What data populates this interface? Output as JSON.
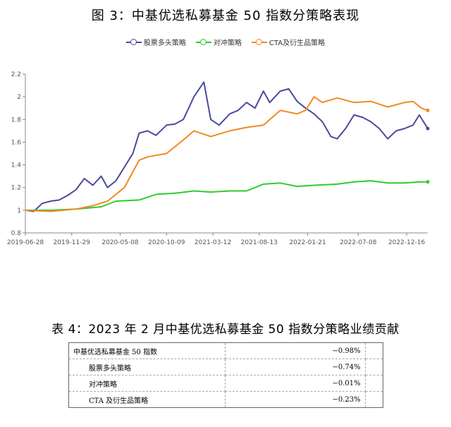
{
  "figure": {
    "title": "图 3：中基优选私募基金 50 指数分策略表现"
  },
  "table": {
    "title": "表 4：2023 年 2 月中基优选私募基金 50 指数分策略业绩贡献",
    "rows": [
      {
        "label": "中基优选私募基金 50 指数",
        "value": "−0.98%"
      },
      {
        "label": "股票多头策略",
        "value": "−0.74%"
      },
      {
        "label": "对冲策略",
        "value": "−0.01%"
      },
      {
        "label": "CTA 及衍生品策略",
        "value": "−0.23%"
      }
    ]
  },
  "chart_data": {
    "type": "line",
    "title": "",
    "xlabel": "",
    "ylabel": "",
    "ylim": [
      0.8,
      2.2
    ],
    "yticks": [
      "0.8",
      "1",
      "1.2",
      "1.4",
      "1.6",
      "1.8",
      "2",
      "2.2"
    ],
    "xticks": [
      "2019-06-28",
      "2019-11-29",
      "2020-05-08",
      "2020-10-09",
      "2021-03-12",
      "2021-08-13",
      "2022-01-21",
      "2022-07-08",
      "2022-12-16"
    ],
    "xrange": [
      "2019-06-28",
      "2023-02-24"
    ],
    "grid": false,
    "legend_position": "top",
    "colors": {
      "long_only": "#4a4a9c",
      "hedge": "#2ecc2e",
      "cta": "#f08a24"
    },
    "series": [
      {
        "name": "股票多头策略",
        "key": "long_only",
        "points": [
          [
            "2019-06-28",
            1.0
          ],
          [
            "2019-07-26",
            0.99
          ],
          [
            "2019-08-23",
            1.06
          ],
          [
            "2019-09-20",
            1.08
          ],
          [
            "2019-10-18",
            1.09
          ],
          [
            "2019-11-15",
            1.13
          ],
          [
            "2019-12-13",
            1.18
          ],
          [
            "2020-01-10",
            1.28
          ],
          [
            "2020-02-07",
            1.22
          ],
          [
            "2020-03-06",
            1.3
          ],
          [
            "2020-03-27",
            1.2
          ],
          [
            "2020-04-24",
            1.26
          ],
          [
            "2020-05-22",
            1.38
          ],
          [
            "2020-06-19",
            1.5
          ],
          [
            "2020-07-10",
            1.68
          ],
          [
            "2020-08-07",
            1.7
          ],
          [
            "2020-09-04",
            1.66
          ],
          [
            "2020-10-09",
            1.75
          ],
          [
            "2020-11-06",
            1.76
          ],
          [
            "2020-12-04",
            1.8
          ],
          [
            "2021-01-08",
            2.0
          ],
          [
            "2021-02-10",
            2.13
          ],
          [
            "2021-03-05",
            1.8
          ],
          [
            "2021-04-02",
            1.75
          ],
          [
            "2021-05-07",
            1.85
          ],
          [
            "2021-06-04",
            1.88
          ],
          [
            "2021-07-02",
            1.95
          ],
          [
            "2021-07-30",
            1.9
          ],
          [
            "2021-08-27",
            2.05
          ],
          [
            "2021-09-17",
            1.95
          ],
          [
            "2021-10-22",
            2.05
          ],
          [
            "2021-11-19",
            2.07
          ],
          [
            "2021-12-17",
            1.96
          ],
          [
            "2022-01-14",
            1.9
          ],
          [
            "2022-02-11",
            1.85
          ],
          [
            "2022-03-11",
            1.78
          ],
          [
            "2022-04-08",
            1.65
          ],
          [
            "2022-04-29",
            1.63
          ],
          [
            "2022-05-27",
            1.72
          ],
          [
            "2022-06-24",
            1.84
          ],
          [
            "2022-07-22",
            1.82
          ],
          [
            "2022-08-19",
            1.78
          ],
          [
            "2022-09-16",
            1.72
          ],
          [
            "2022-10-14",
            1.63
          ],
          [
            "2022-11-11",
            1.7
          ],
          [
            "2022-12-09",
            1.72
          ],
          [
            "2023-01-06",
            1.75
          ],
          [
            "2023-01-27",
            1.84
          ],
          [
            "2023-02-24",
            1.72
          ]
        ]
      },
      {
        "name": "对冲策略",
        "key": "hedge",
        "points": [
          [
            "2019-06-28",
            1.0
          ],
          [
            "2019-09-20",
            1.0
          ],
          [
            "2019-12-13",
            1.01
          ],
          [
            "2020-03-06",
            1.03
          ],
          [
            "2020-04-24",
            1.08
          ],
          [
            "2020-07-10",
            1.09
          ],
          [
            "2020-09-04",
            1.14
          ],
          [
            "2020-11-06",
            1.15
          ],
          [
            "2021-01-08",
            1.17
          ],
          [
            "2021-03-05",
            1.16
          ],
          [
            "2021-05-07",
            1.17
          ],
          [
            "2021-07-02",
            1.17
          ],
          [
            "2021-08-27",
            1.23
          ],
          [
            "2021-10-22",
            1.24
          ],
          [
            "2021-12-17",
            1.21
          ],
          [
            "2022-02-11",
            1.22
          ],
          [
            "2022-04-29",
            1.23
          ],
          [
            "2022-06-24",
            1.25
          ],
          [
            "2022-08-19",
            1.26
          ],
          [
            "2022-10-14",
            1.24
          ],
          [
            "2022-12-09",
            1.24
          ],
          [
            "2023-01-27",
            1.25
          ],
          [
            "2023-02-24",
            1.25
          ]
        ]
      },
      {
        "name": "CTA及衍生品策略",
        "key": "cta",
        "points": [
          [
            "2019-06-28",
            1.0
          ],
          [
            "2019-09-20",
            0.99
          ],
          [
            "2019-12-13",
            1.01
          ],
          [
            "2020-02-07",
            1.04
          ],
          [
            "2020-03-27",
            1.08
          ],
          [
            "2020-05-22",
            1.2
          ],
          [
            "2020-07-10",
            1.44
          ],
          [
            "2020-08-07",
            1.47
          ],
          [
            "2020-10-09",
            1.5
          ],
          [
            "2020-12-04",
            1.62
          ],
          [
            "2021-01-08",
            1.7
          ],
          [
            "2021-03-05",
            1.65
          ],
          [
            "2021-05-07",
            1.7
          ],
          [
            "2021-07-02",
            1.73
          ],
          [
            "2021-08-27",
            1.75
          ],
          [
            "2021-10-22",
            1.88
          ],
          [
            "2021-12-17",
            1.85
          ],
          [
            "2022-01-14",
            1.88
          ],
          [
            "2022-02-11",
            2.0
          ],
          [
            "2022-03-11",
            1.95
          ],
          [
            "2022-04-29",
            1.99
          ],
          [
            "2022-06-24",
            1.95
          ],
          [
            "2022-08-19",
            1.96
          ],
          [
            "2022-10-14",
            1.91
          ],
          [
            "2022-12-09",
            1.95
          ],
          [
            "2023-01-06",
            1.96
          ],
          [
            "2023-02-03",
            1.9
          ],
          [
            "2023-02-24",
            1.88
          ]
        ]
      }
    ]
  }
}
